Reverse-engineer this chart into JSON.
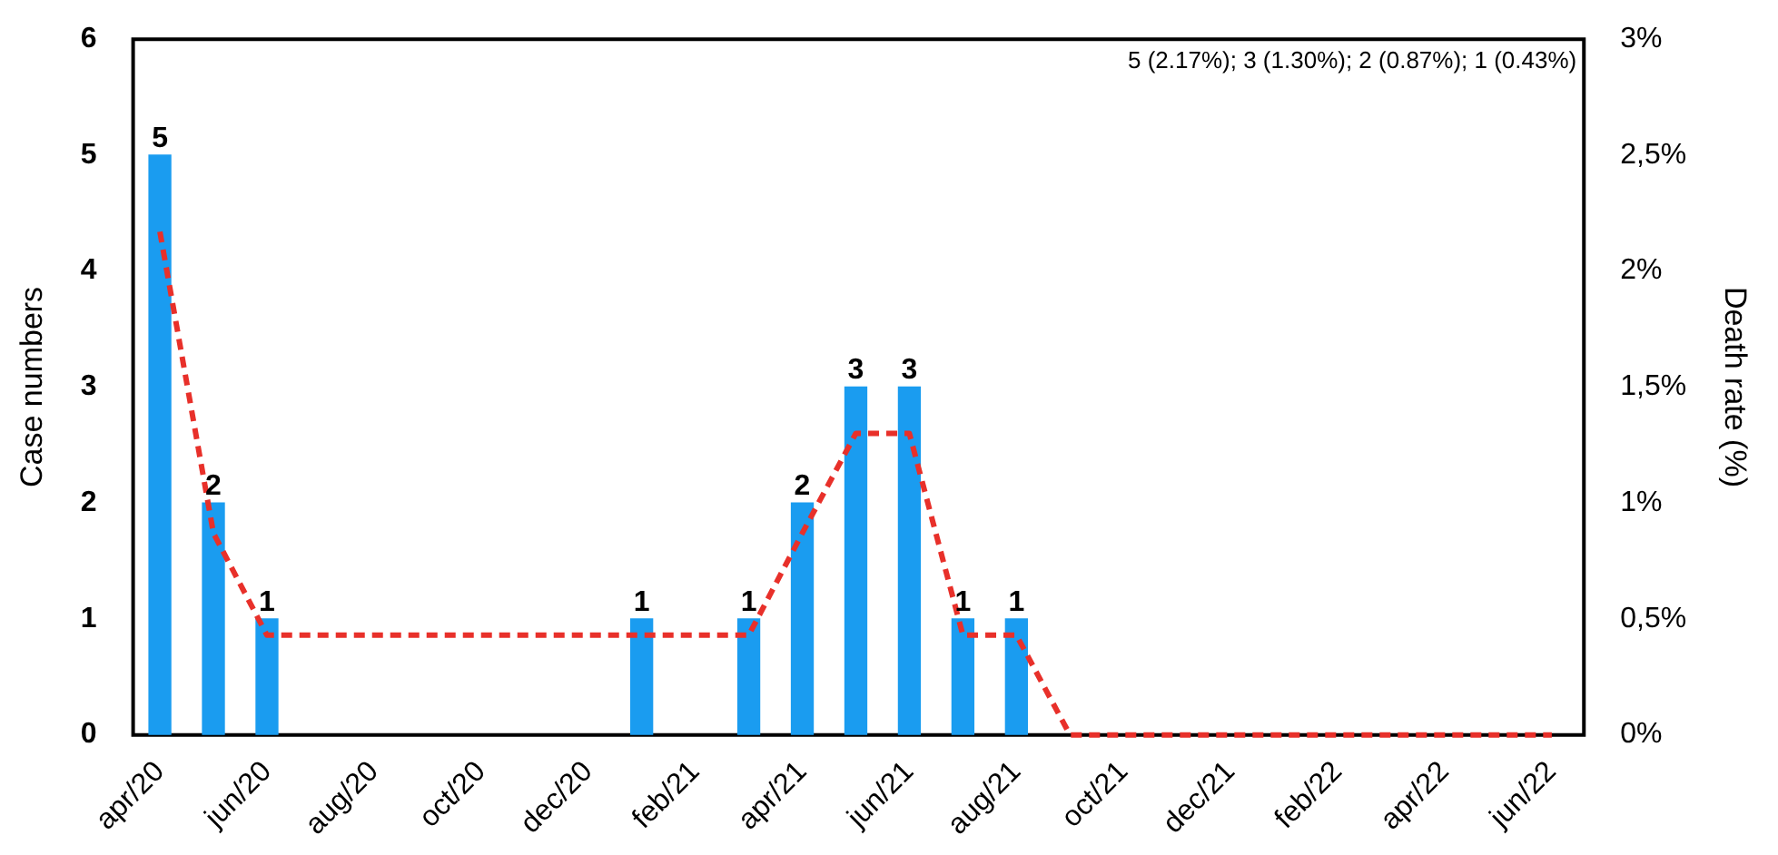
{
  "chart_data": {
    "type": "bar",
    "ylabel": "Case numbers",
    "y2label": "Death rate (%)",
    "annotations": [
      "5 (2.17%); 3 (1.30%); 2 (0.87%); 1 (0.43%)"
    ],
    "xlim": [
      "2020-03-16",
      "2022-06-19"
    ],
    "xticks": [
      {
        "value": "2020-04",
        "label": "apr/20"
      },
      {
        "value": "2020-06",
        "label": "jun/20"
      },
      {
        "value": "2020-08",
        "label": "aug/20"
      },
      {
        "value": "2020-10",
        "label": "oct/20"
      },
      {
        "value": "2020-12",
        "label": "dec/20"
      },
      {
        "value": "2021-02",
        "label": "feb/21"
      },
      {
        "value": "2021-04",
        "label": "apr/21"
      },
      {
        "value": "2021-06",
        "label": "jun/21"
      },
      {
        "value": "2021-08",
        "label": "aug/21"
      },
      {
        "value": "2021-10",
        "label": "oct/21"
      },
      {
        "value": "2021-12",
        "label": "dec/21"
      },
      {
        "value": "2022-02",
        "label": "feb/22"
      },
      {
        "value": "2022-04",
        "label": "apr/22"
      },
      {
        "value": "2022-06",
        "label": "jun/22"
      }
    ],
    "ylim": [
      0,
      6
    ],
    "yticks": [
      0,
      1,
      2,
      3,
      4,
      5,
      6
    ],
    "y2lim": [
      0,
      3
    ],
    "y2ticks": [
      {
        "value": 0,
        "label": "0%"
      },
      {
        "value": 0.5,
        "label": "0,5%"
      },
      {
        "value": 1,
        "label": "1%"
      },
      {
        "value": 1.5,
        "label": "1,5%"
      },
      {
        "value": 2,
        "label": "2%"
      },
      {
        "value": 2.5,
        "label": "2,5%"
      },
      {
        "value": 3,
        "label": "3%"
      }
    ],
    "grid": false,
    "legend": false,
    "series": [
      {
        "color": "#1a9cf0",
        "x": [
          "2020-04",
          "2020-05",
          "2020-06",
          "2021-01",
          "2021-03",
          "2021-04",
          "2021-05",
          "2021-06",
          "2021-07",
          "2021-08"
        ],
        "values": [
          5,
          2,
          1,
          1,
          1,
          2,
          3,
          3,
          1,
          1
        ],
        "value_labels": [
          "5",
          "2",
          "1",
          "1",
          "1",
          "2",
          "3",
          "3",
          "1",
          "1"
        ]
      },
      {
        "type": "line",
        "axis": "y2",
        "color": "#e8302a",
        "line_style": "dashed",
        "marker": "none",
        "x": [
          "2020-04",
          "2020-05",
          "2020-06",
          "2021-01",
          "2021-03",
          "2021-04",
          "2021-05",
          "2021-06",
          "2021-07",
          "2021-08",
          "2021-09",
          "2022-06"
        ],
        "values": [
          2.17,
          0.87,
          0.43,
          0.43,
          0.43,
          0.87,
          1.3,
          1.3,
          0.43,
          0.43,
          0,
          0
        ]
      }
    ]
  }
}
